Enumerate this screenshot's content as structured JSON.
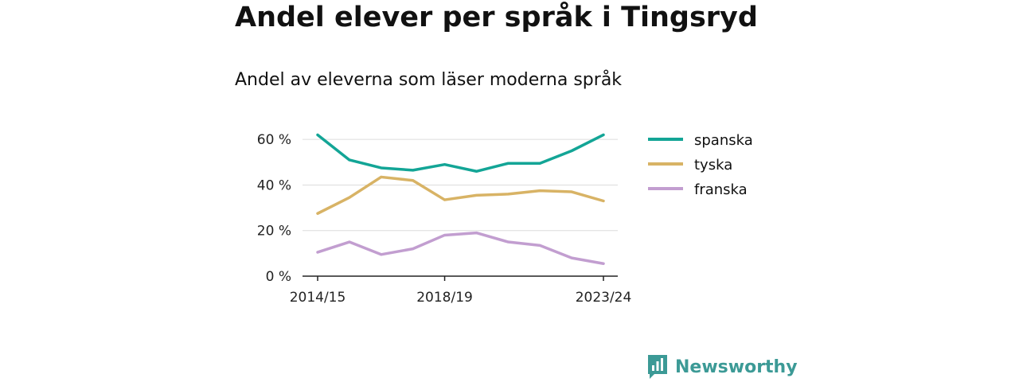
{
  "title": "Andel elever per språk i Tingsryd",
  "subtitle": "Andel av eleverna som läser moderna språk",
  "branding": {
    "name": "Newsworthy",
    "icon": "bar-chart-logo-icon"
  },
  "chart_data": {
    "type": "line",
    "x": [
      "2014/15",
      "2015/16",
      "2016/17",
      "2017/18",
      "2018/19",
      "2019/20",
      "2020/21",
      "2021/22",
      "2022/23",
      "2023/24"
    ],
    "x_tick_labels": [
      "2014/15",
      "2018/19",
      "2023/24"
    ],
    "y_tick_labels": [
      "0 %",
      "20 %",
      "40 %",
      "60 %"
    ],
    "y_ticks": [
      0,
      20,
      40,
      60
    ],
    "ylim": [
      0,
      66
    ],
    "grid": true,
    "legend_position": "right",
    "series": [
      {
        "name": "spanska",
        "color": "#13a596",
        "values": [
          62,
          51,
          47.5,
          46.5,
          49,
          46,
          49.5,
          49.5,
          55,
          62
        ]
      },
      {
        "name": "tyska",
        "color": "#d8b365",
        "values": [
          27.5,
          34.5,
          43.5,
          42,
          33.5,
          35.5,
          36,
          37.5,
          37,
          33
        ]
      },
      {
        "name": "franska",
        "color": "#c29ed0",
        "values": [
          10.5,
          15,
          9.5,
          12,
          18,
          19,
          15,
          13.5,
          8,
          5.5
        ]
      }
    ]
  }
}
